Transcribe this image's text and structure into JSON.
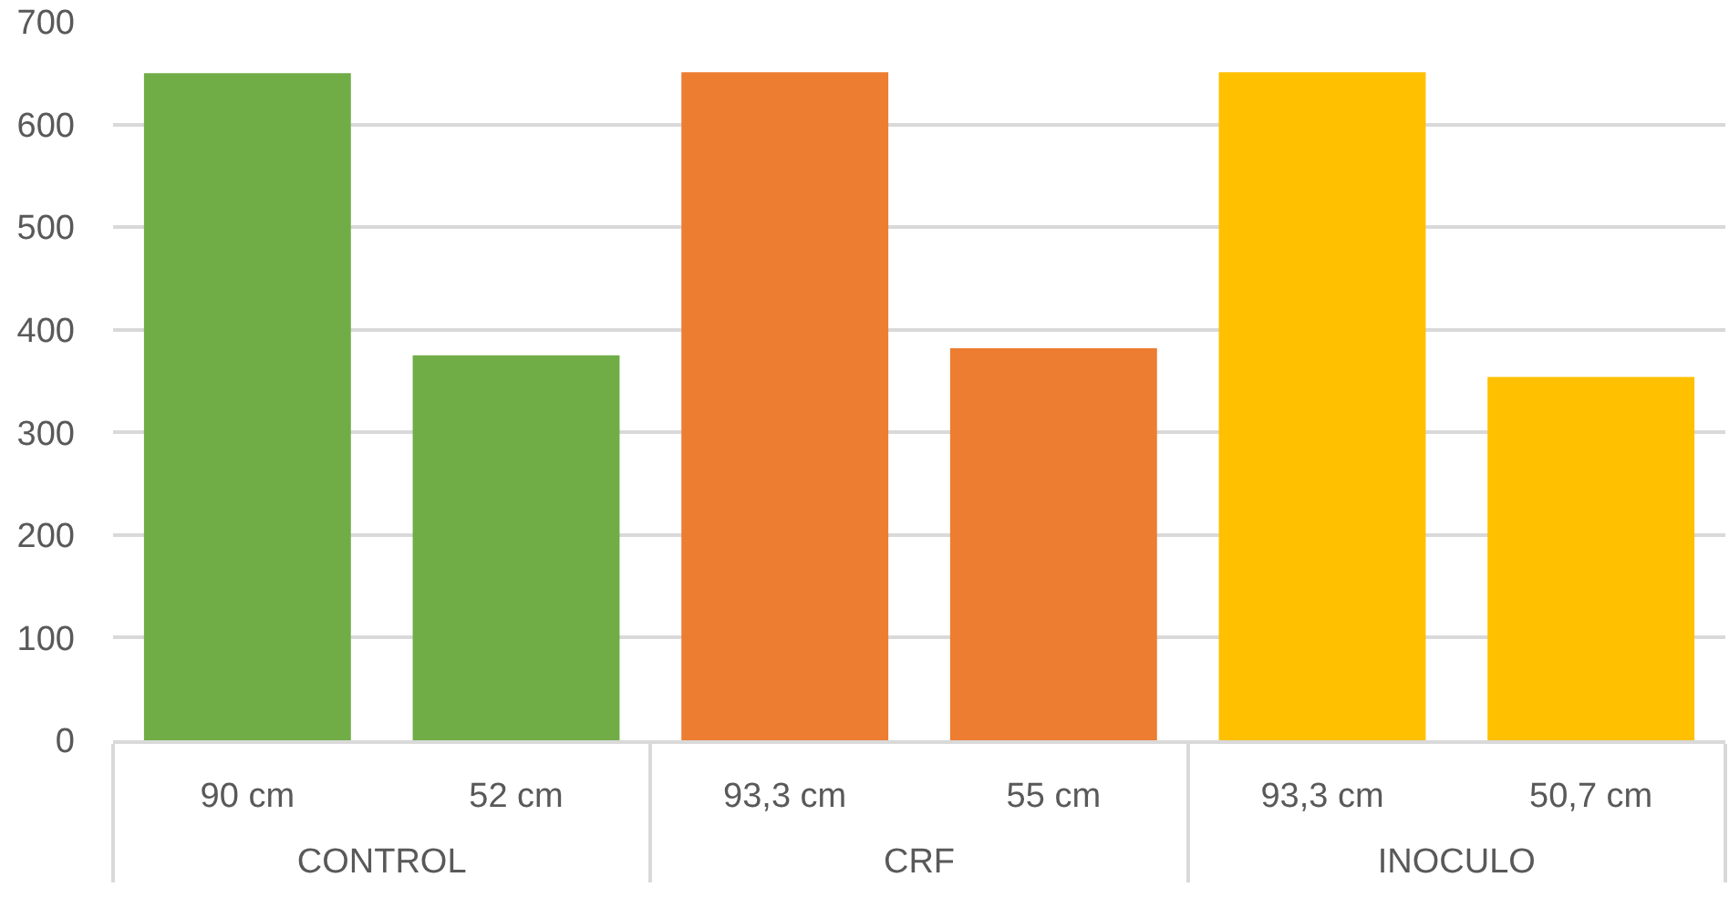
{
  "chart_data": {
    "type": "bar",
    "categories": [
      "90 cm",
      "52 cm",
      "93,3 cm",
      "55 cm",
      "93,3 cm",
      "50,7 cm"
    ],
    "series": [
      {
        "name": "CONTROL",
        "color": "#70ad47",
        "values": [
          650,
          375,
          null,
          null,
          null,
          null
        ]
      },
      {
        "name": "CRF",
        "color": "#ed7d31",
        "values": [
          null,
          null,
          651,
          382,
          null,
          null
        ]
      },
      {
        "name": "INOCULO",
        "color": "#ffc000",
        "values": [
          null,
          null,
          null,
          null,
          651,
          354
        ]
      }
    ],
    "ylim": [
      0,
      700
    ],
    "yticks": [
      0,
      100,
      200,
      300,
      400,
      500,
      600,
      700
    ],
    "grid": "y"
  }
}
